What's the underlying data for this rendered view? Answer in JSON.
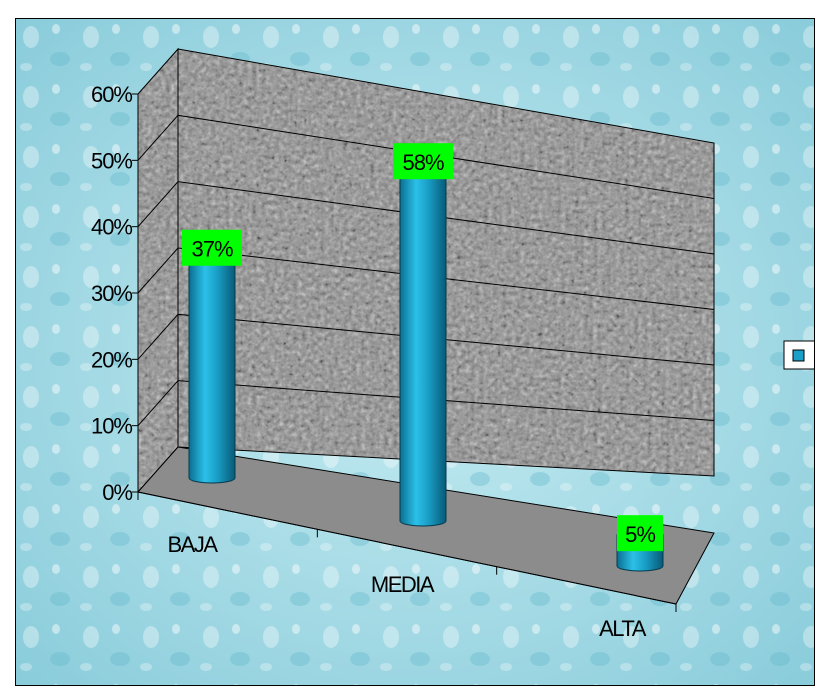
{
  "chart_data": {
    "type": "bar",
    "style": "3d-cylinder",
    "categories": [
      "BAJA",
      "MEDIA",
      "ALTA"
    ],
    "series": [
      {
        "values": [
          0.37,
          0.58,
          0.05
        ],
        "color": "#1aa0c8"
      }
    ],
    "data_labels": [
      "37%",
      "58%",
      "5%"
    ],
    "y_ticks": [
      "0%",
      "10%",
      "20%",
      "30%",
      "40%",
      "50%",
      "60%"
    ],
    "ylim": [
      0,
      0.6
    ],
    "grid": true,
    "legend_position": "right",
    "title": "",
    "xlabel": "",
    "ylabel": "",
    "colors": {
      "background": "#9fd8e4",
      "wall": "#8a8a8a",
      "floor": "#8c8c8c",
      "bar": "#1aa0c8",
      "label_background": "#00ff00",
      "legend_swatch": "#1aa0c8"
    }
  }
}
